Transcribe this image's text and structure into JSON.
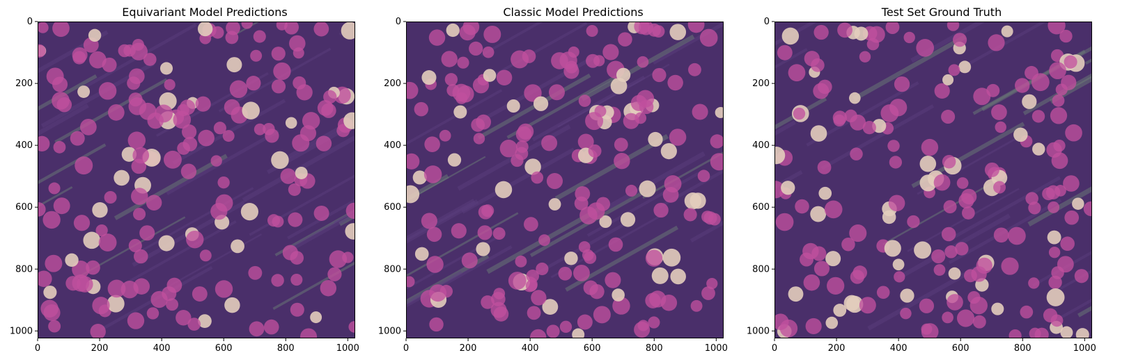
{
  "figure": {
    "panels": [
      {
        "title": "Equivariant Model Predictions"
      },
      {
        "title": "Classic Model Predictions"
      },
      {
        "title": "Test Set Ground Truth"
      }
    ],
    "x_ticks": [
      "0",
      "200",
      "400",
      "600",
      "800",
      "1000"
    ],
    "y_ticks": [
      "0",
      "200",
      "400",
      "600",
      "800",
      "1000"
    ],
    "x_tick_values": [
      0,
      200,
      400,
      600,
      800,
      1000
    ],
    "y_tick_values": [
      0,
      200,
      400,
      600,
      800,
      1000
    ],
    "image_extent": [
      0,
      1024
    ],
    "colors": {
      "tissue_base": "#4a2f6a",
      "nucleus_pink": "#c0509e",
      "nucleus_light": "#e3cdbd",
      "stroma": "#6e8378"
    }
  }
}
